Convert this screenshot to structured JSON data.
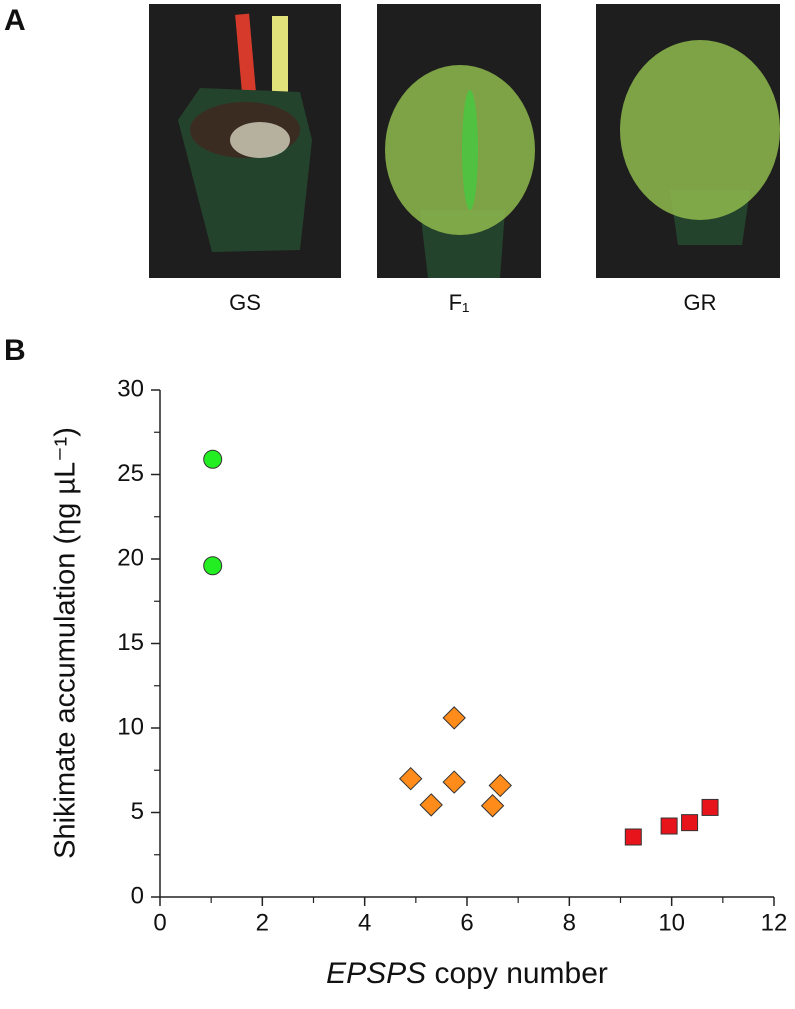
{
  "panel_a": {
    "label": "A",
    "captions": [
      "GS",
      "F₁",
      "GR"
    ]
  },
  "chart_data": {
    "type": "scatter",
    "label": "B",
    "xlabel_italic": "EPSPS",
    "xlabel": "copy number",
    "ylabel": "Shikimate accumulation  (ηg µL⁻¹)",
    "xlim": [
      0,
      12
    ],
    "xticks": [
      0,
      2,
      4,
      6,
      8,
      10,
      12
    ],
    "ylim": [
      0,
      30
    ],
    "yticks": [
      0,
      5,
      10,
      15,
      20,
      25,
      30
    ],
    "series": [
      {
        "color": "#22ee22",
        "marker": "circle",
        "x": [
          1.03,
          1.03
        ],
        "values": [
          25.9,
          19.6
        ]
      },
      {
        "color": "#ff8c1a",
        "marker": "diamond",
        "x": [
          4.9,
          5.3,
          5.75,
          5.75,
          6.5,
          6.65
        ],
        "values": [
          7.0,
          5.45,
          10.6,
          6.8,
          5.4,
          6.6
        ]
      },
      {
        "color": "#e8141c",
        "marker": "square",
        "x": [
          9.25,
          9.95,
          10.35,
          10.75
        ],
        "values": [
          3.55,
          4.2,
          4.4,
          5.3
        ]
      }
    ]
  }
}
